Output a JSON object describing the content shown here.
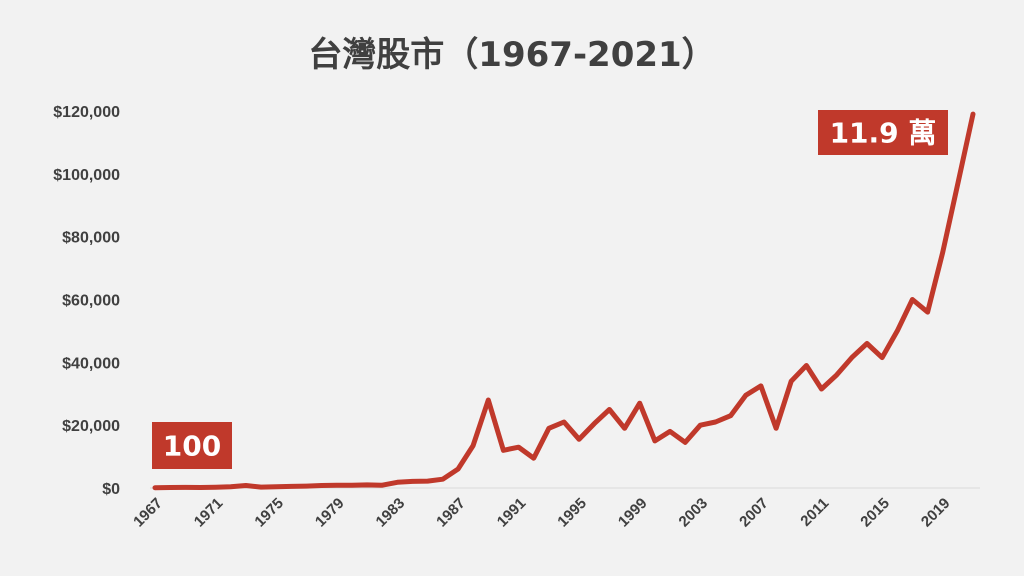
{
  "chart_data": {
    "type": "line",
    "title": "台灣股市（1967-2021）",
    "xlabel": "",
    "ylabel": "",
    "ylim": [
      0,
      120000
    ],
    "y_ticks": [
      0,
      20000,
      40000,
      60000,
      80000,
      100000,
      120000
    ],
    "y_tick_labels": [
      "$0",
      "$20,000",
      "$40,000",
      "$60,000",
      "$80,000",
      "$100,000",
      "$120,000"
    ],
    "x_tick_labels": [
      "1967",
      "1971",
      "1975",
      "1979",
      "1983",
      "1987",
      "1991",
      "1995",
      "1999",
      "2003",
      "2007",
      "2011",
      "2015",
      "2019"
    ],
    "grid": false,
    "line_color": "#c0392b",
    "series": [
      {
        "x": [
          1967,
          1968,
          1969,
          1970,
          1971,
          1972,
          1973,
          1974,
          1975,
          1976,
          1977,
          1978,
          1979,
          1980,
          1981,
          1982,
          1983,
          1984,
          1985,
          1986,
          1987,
          1988,
          1989,
          1990,
          1991,
          1992,
          1993,
          1994,
          1995,
          1996,
          1997,
          1998,
          1999,
          2000,
          2001,
          2002,
          2003,
          2004,
          2005,
          2006,
          2007,
          2008,
          2009,
          2010,
          2011,
          2012,
          2013,
          2014,
          2015,
          2016,
          2017,
          2018,
          2019,
          2020,
          2021
        ],
        "values": [
          100,
          150,
          180,
          170,
          250,
          400,
          800,
          300,
          400,
          500,
          600,
          800,
          900,
          900,
          1000,
          900,
          1800,
          2100,
          2200,
          2800,
          6000,
          13500,
          28000,
          12000,
          13000,
          9500,
          19000,
          21000,
          15500,
          20500,
          25000,
          19000,
          27000,
          15000,
          18000,
          14500,
          20000,
          21000,
          23000,
          29500,
          32500,
          19000,
          34000,
          39000,
          31500,
          36000,
          41500,
          46000,
          41500,
          50000,
          60000,
          56000,
          75000,
          97000,
          119000
        ]
      }
    ],
    "annotations": [
      {
        "text": "100",
        "x": 1967,
        "y": 100,
        "color": "#c0392b"
      },
      {
        "text": "11.9 萬",
        "x": 2021,
        "y": 119000,
        "color": "#c0392b"
      }
    ]
  }
}
